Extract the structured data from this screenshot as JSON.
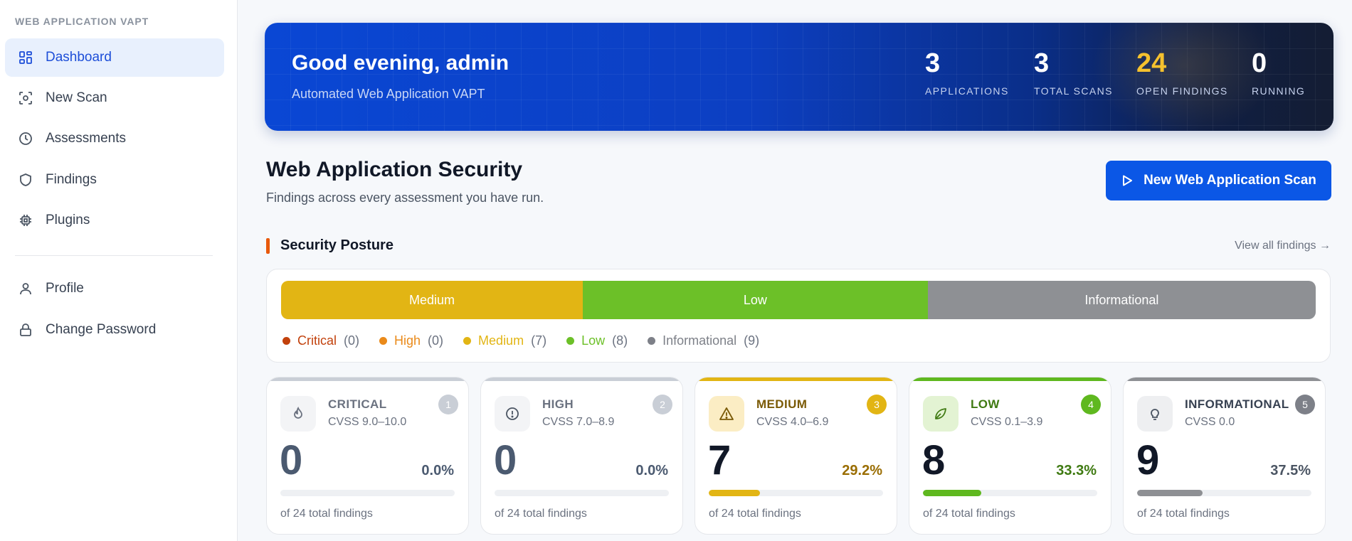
{
  "sidebar": {
    "header": "WEB APPLICATION VAPT",
    "items": [
      {
        "label": "Dashboard",
        "icon": "dashboard-grid-icon",
        "active": true
      },
      {
        "label": "New Scan",
        "icon": "scan-icon",
        "active": false
      },
      {
        "label": "Assessments",
        "icon": "clock-icon",
        "active": false
      },
      {
        "label": "Findings",
        "icon": "shield-icon",
        "active": false
      },
      {
        "label": "Plugins",
        "icon": "chip-icon",
        "active": false
      }
    ],
    "account_items": [
      {
        "label": "Profile",
        "icon": "user-icon"
      },
      {
        "label": "Change Password",
        "icon": "lock-icon"
      }
    ]
  },
  "hero": {
    "greeting": "Good evening, admin",
    "subtitle": "Automated Web Application VAPT",
    "stats": [
      {
        "value": "3",
        "label": "APPLICATIONS"
      },
      {
        "value": "3",
        "label": "TOTAL SCANS"
      },
      {
        "value": "24",
        "label": "OPEN FINDINGS"
      },
      {
        "value": "0",
        "label": "RUNNING"
      }
    ]
  },
  "section": {
    "title": "Web Application Security",
    "subtitle": "Findings across every assessment you have run.",
    "new_scan_button": "New Web Application Scan"
  },
  "posture": {
    "title": "Security Posture",
    "view_all": "View all findings →",
    "bar": [
      {
        "label": "Medium",
        "value": 7,
        "color": "#e2b514"
      },
      {
        "label": "Low",
        "value": 8,
        "color": "#6cc028"
      },
      {
        "label": "Informational",
        "value": 9,
        "color": "#8e9094"
      }
    ],
    "legend": [
      {
        "label": "Critical",
        "count": "(0)",
        "color": "#c2410c"
      },
      {
        "label": "High",
        "count": "(0)",
        "color": "#ea8a1a"
      },
      {
        "label": "Medium",
        "count": "(7)",
        "color": "#e2b514"
      },
      {
        "label": "Low",
        "count": "(8)",
        "color": "#6cc028"
      },
      {
        "label": "Informational",
        "count": "(9)",
        "color": "#7d8088"
      }
    ]
  },
  "severity_cards": [
    {
      "name": "CRITICAL",
      "cvss": "CVSS 9.0–10.0",
      "badge": "1",
      "count": "0",
      "percent": "0.0%",
      "fill": 0.0,
      "footer": "of 24 total findings",
      "icon": "flame-icon",
      "color": "#c9ced6",
      "active": false
    },
    {
      "name": "HIGH",
      "cvss": "CVSS 7.0–8.9",
      "badge": "2",
      "count": "0",
      "percent": "0.0%",
      "fill": 0.0,
      "footer": "of 24 total findings",
      "icon": "alert-circle-icon",
      "color": "#c9ced6",
      "active": false
    },
    {
      "name": "MEDIUM",
      "cvss": "CVSS 4.0–6.9",
      "badge": "3",
      "count": "7",
      "percent": "29.2%",
      "fill": 0.292,
      "footer": "of 24 total findings",
      "icon": "warning-triangle-icon",
      "color": "#e2b514",
      "active": true
    },
    {
      "name": "LOW",
      "cvss": "CVSS 0.1–3.9",
      "badge": "4",
      "count": "8",
      "percent": "33.3%",
      "fill": 0.333,
      "footer": "of 24 total findings",
      "icon": "leaf-icon",
      "color": "#5fb81f",
      "active": true
    },
    {
      "name": "INFORMATIONAL",
      "cvss": "CVSS 0.0",
      "badge": "5",
      "count": "9",
      "percent": "37.5%",
      "fill": 0.375,
      "footer": "of 24 total findings",
      "icon": "lightbulb-icon",
      "color": "#8e9094",
      "active": true
    }
  ]
}
